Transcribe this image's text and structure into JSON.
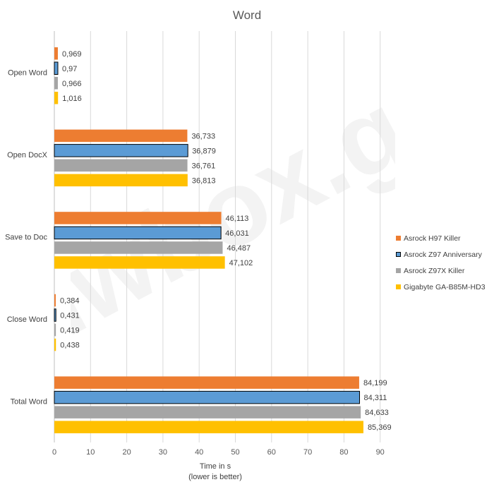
{
  "chart_data": {
    "type": "bar",
    "orientation": "horizontal",
    "title": "Word",
    "categories": [
      "Open Word",
      "Open DocX",
      "Save to Doc",
      "Close Word",
      "Total Word"
    ],
    "series": [
      {
        "name": "Asrock H97 Killer",
        "color": "#ED7D31",
        "values": [
          0.969,
          36.733,
          46.113,
          0.384,
          84.199
        ],
        "labels": [
          "0,969",
          "36,733",
          "46,113",
          "0,384",
          "84,199"
        ]
      },
      {
        "name": "Asrock Z97 Anniversary",
        "color": "#5B9BD5",
        "outline": "#000000",
        "values": [
          0.97,
          36.879,
          46.031,
          0.431,
          84.311
        ],
        "labels": [
          "0,97",
          "36,879",
          "46,031",
          "0,431",
          "84,311"
        ]
      },
      {
        "name": "Asrock Z97X Killer",
        "color": "#A5A5A5",
        "values": [
          0.966,
          36.761,
          46.487,
          0.419,
          84.633
        ],
        "labels": [
          "0,966",
          "36,761",
          "46,487",
          "0,419",
          "84,633"
        ]
      },
      {
        "name": "Gigabyte GA-B85M-HD3",
        "color": "#FFC000",
        "values": [
          1.016,
          36.813,
          47.102,
          0.438,
          85.369
        ],
        "labels": [
          "1,016",
          "36,813",
          "47,102",
          "0,438",
          "85,369"
        ]
      }
    ],
    "xlim": [
      0,
      90
    ],
    "xticks": [
      0,
      10,
      20,
      30,
      40,
      50,
      60,
      70,
      80,
      90
    ],
    "xlabel": "Time in s",
    "xlabel_sub": "(lower is better)",
    "legend_position": "right",
    "grid": true,
    "watermark": "hwbox.gr"
  }
}
